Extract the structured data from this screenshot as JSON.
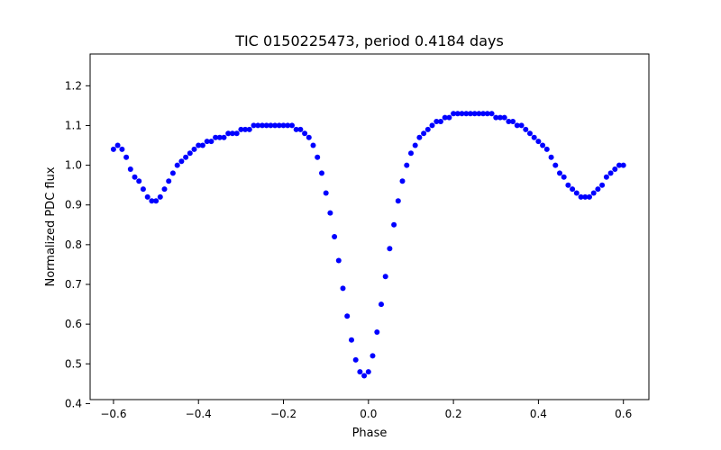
{
  "chart_data": {
    "type": "scatter",
    "title": "TIC 0150225473, period 0.4184 days",
    "xlabel": "Phase",
    "ylabel": "Normalized PDC flux",
    "xlim": [
      -0.655,
      0.66
    ],
    "ylim": [
      0.41,
      1.28
    ],
    "xticks": [
      -0.6,
      -0.4,
      -0.2,
      0.0,
      0.2,
      0.4,
      0.6
    ],
    "xtick_labels": [
      "−0.6",
      "−0.4",
      "−0.2",
      "0.0",
      "0.2",
      "0.4",
      "0.6"
    ],
    "yticks": [
      0.4,
      0.5,
      0.6,
      0.7,
      0.8,
      0.9,
      1.0,
      1.1,
      1.2
    ],
    "ytick_labels": [
      "0.4",
      "0.5",
      "0.6",
      "0.7",
      "0.8",
      "0.9",
      "1.0",
      "1.1",
      "1.2"
    ],
    "grid": false,
    "legend": "none",
    "point_color": "#0000ff",
    "series": [
      {
        "x": [
          -0.6,
          -0.59,
          -0.58,
          -0.57,
          -0.56,
          -0.55,
          -0.54,
          -0.53,
          -0.52,
          -0.51,
          -0.5,
          -0.49,
          -0.48,
          -0.47,
          -0.46,
          -0.45,
          -0.44,
          -0.43,
          -0.42,
          -0.41,
          -0.4,
          -0.39,
          -0.38,
          -0.37,
          -0.36,
          -0.35,
          -0.34,
          -0.33,
          -0.32,
          -0.31,
          -0.3,
          -0.29,
          -0.28,
          -0.27,
          -0.26,
          -0.25,
          -0.24,
          -0.23,
          -0.22,
          -0.21,
          -0.2,
          -0.19,
          -0.18,
          -0.17,
          -0.16,
          -0.15,
          -0.14,
          -0.13,
          -0.12,
          -0.11,
          -0.1,
          -0.09,
          -0.08,
          -0.07,
          -0.06,
          -0.05,
          -0.04,
          -0.03,
          -0.02,
          -0.01,
          0.0,
          0.01,
          0.02,
          0.03,
          0.04,
          0.05,
          0.06,
          0.07,
          0.08,
          0.09,
          0.1,
          0.11,
          0.12,
          0.13,
          0.14,
          0.15,
          0.16,
          0.17,
          0.18,
          0.19,
          0.2,
          0.21,
          0.22,
          0.23,
          0.24,
          0.25,
          0.26,
          0.27,
          0.28,
          0.29,
          0.3,
          0.31,
          0.32,
          0.33,
          0.34,
          0.35,
          0.36,
          0.37,
          0.38,
          0.39,
          0.4,
          0.41,
          0.42,
          0.43,
          0.44,
          0.45,
          0.46,
          0.47,
          0.48,
          0.49,
          0.5,
          0.51,
          0.52,
          0.53,
          0.54,
          0.55,
          0.56,
          0.57,
          0.58,
          0.59,
          0.6
        ],
        "y": [
          1.04,
          1.05,
          1.04,
          1.02,
          0.99,
          0.97,
          0.96,
          0.94,
          0.92,
          0.91,
          0.91,
          0.92,
          0.94,
          0.96,
          0.98,
          1.0,
          1.01,
          1.02,
          1.03,
          1.04,
          1.05,
          1.05,
          1.06,
          1.06,
          1.07,
          1.07,
          1.07,
          1.08,
          1.08,
          1.08,
          1.09,
          1.09,
          1.09,
          1.1,
          1.1,
          1.1,
          1.1,
          1.1,
          1.1,
          1.1,
          1.1,
          1.1,
          1.1,
          1.09,
          1.09,
          1.08,
          1.07,
          1.05,
          1.02,
          0.98,
          0.93,
          0.88,
          0.82,
          0.76,
          0.69,
          0.62,
          0.56,
          0.51,
          0.48,
          0.47,
          0.48,
          0.52,
          0.58,
          0.65,
          0.72,
          0.79,
          0.85,
          0.91,
          0.96,
          1.0,
          1.03,
          1.05,
          1.07,
          1.08,
          1.09,
          1.1,
          1.11,
          1.11,
          1.12,
          1.12,
          1.13,
          1.13,
          1.13,
          1.13,
          1.13,
          1.13,
          1.13,
          1.13,
          1.13,
          1.13,
          1.12,
          1.12,
          1.12,
          1.11,
          1.11,
          1.1,
          1.1,
          1.09,
          1.08,
          1.07,
          1.06,
          1.05,
          1.04,
          1.02,
          1.0,
          0.98,
          0.97,
          0.95,
          0.94,
          0.93,
          0.92,
          0.92,
          0.92,
          0.93,
          0.94,
          0.95,
          0.97,
          0.98,
          0.99,
          1.0,
          1.0
        ]
      }
    ]
  }
}
